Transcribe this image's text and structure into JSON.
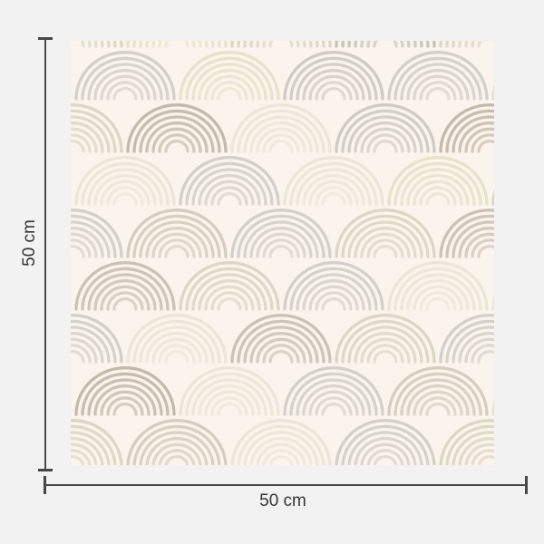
{
  "page": {
    "background": "#f2f2f2"
  },
  "diagram": {
    "type": "product-dimension-diagram",
    "subject": "square wallpaper swatch with hand-drawn pastel rainbow-arch (scallop) pattern",
    "width_label": "50 cm",
    "height_label": "50 cm",
    "line_color": "#474747",
    "text_color": "#363636"
  },
  "swatch": {
    "background": "#fbf4ec",
    "palette": {
      "G": "#d3d0c9",
      "S": "#cfcac6",
      "Y": "#e6e2cb",
      "B": "#dcd6c4",
      "B2": "#d5cdbf",
      "W": "#ebe6d8",
      "T": "#c4b9ab",
      "T2": "#cac2b6"
    },
    "pattern": {
      "type": "scallop-rainbow-arches",
      "arch_radii": [
        54,
        47,
        40,
        33,
        26,
        19,
        12
      ],
      "ry_ratio": 0.95,
      "stroke_width": 3.3,
      "arc_opacities": [
        1,
        0.95,
        0.9,
        0.85,
        0.78,
        0.72,
        0.65
      ],
      "even_centers": [
        60,
        175,
        290,
        405,
        520
      ],
      "odd_centers": [
        2,
        117,
        232,
        347,
        462
      ],
      "rows": [
        {
          "baseline": 6,
          "parity": "odd",
          "colors": [
            "B",
            "Y",
            "B",
            "T2",
            "B"
          ]
        },
        {
          "baseline": 64,
          "parity": "even",
          "colors": [
            "G",
            "Y",
            "S",
            "G",
            "Y"
          ]
        },
        {
          "baseline": 122,
          "parity": "odd",
          "colors": [
            "B",
            "T",
            "W",
            "S",
            "T"
          ]
        },
        {
          "baseline": 180,
          "parity": "even",
          "colors": [
            "W",
            "G",
            "W",
            "Y",
            "B"
          ]
        },
        {
          "baseline": 238,
          "parity": "odd",
          "colors": [
            "G",
            "B2",
            "G",
            "B",
            "T2"
          ]
        },
        {
          "baseline": 296,
          "parity": "even",
          "colors": [
            "T2",
            "B",
            "G",
            "W",
            "W"
          ]
        },
        {
          "baseline": 354,
          "parity": "odd",
          "colors": [
            "G",
            "W",
            "T2",
            "B",
            "G"
          ]
        },
        {
          "baseline": 412,
          "parity": "even",
          "colors": [
            "T",
            "W",
            "G",
            "B2",
            "Y"
          ]
        },
        {
          "baseline": 470,
          "parity": "odd",
          "colors": [
            "B",
            "B2",
            "W",
            "G",
            "B"
          ]
        }
      ]
    }
  }
}
